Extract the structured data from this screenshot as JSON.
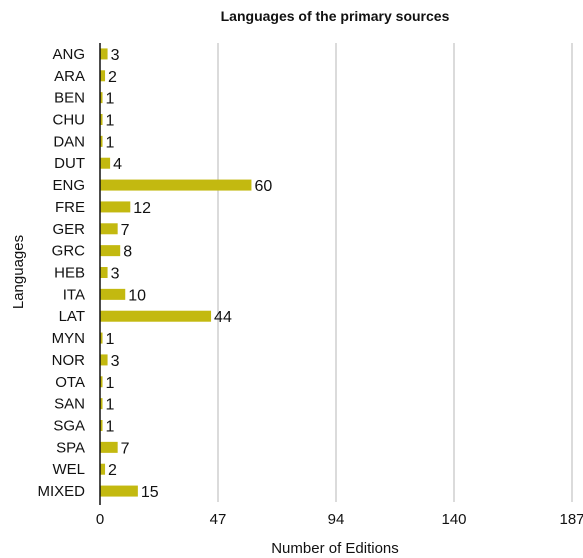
{
  "chart_data": {
    "type": "bar",
    "orientation": "horizontal",
    "title": "Languages of the primary sources",
    "xlabel": "Number of Editions",
    "ylabel": "Languages",
    "categories": [
      "ANG",
      "ARA",
      "BEN",
      "CHU",
      "DAN",
      "DUT",
      "ENG",
      "FRE",
      "GER",
      "GRC",
      "HEB",
      "ITA",
      "LAT",
      "MYN",
      "NOR",
      "OTA",
      "SAN",
      "SGA",
      "SPA",
      "WEL",
      "MIXED"
    ],
    "values": [
      3,
      2,
      1,
      1,
      1,
      4,
      60,
      12,
      7,
      8,
      3,
      10,
      44,
      1,
      3,
      1,
      1,
      1,
      7,
      2,
      15
    ],
    "xticks": [
      "0",
      "47",
      "94",
      "140",
      "187"
    ],
    "xlim": [
      0,
      187
    ],
    "grid": "vertical",
    "bar_color": "#c3b910"
  }
}
